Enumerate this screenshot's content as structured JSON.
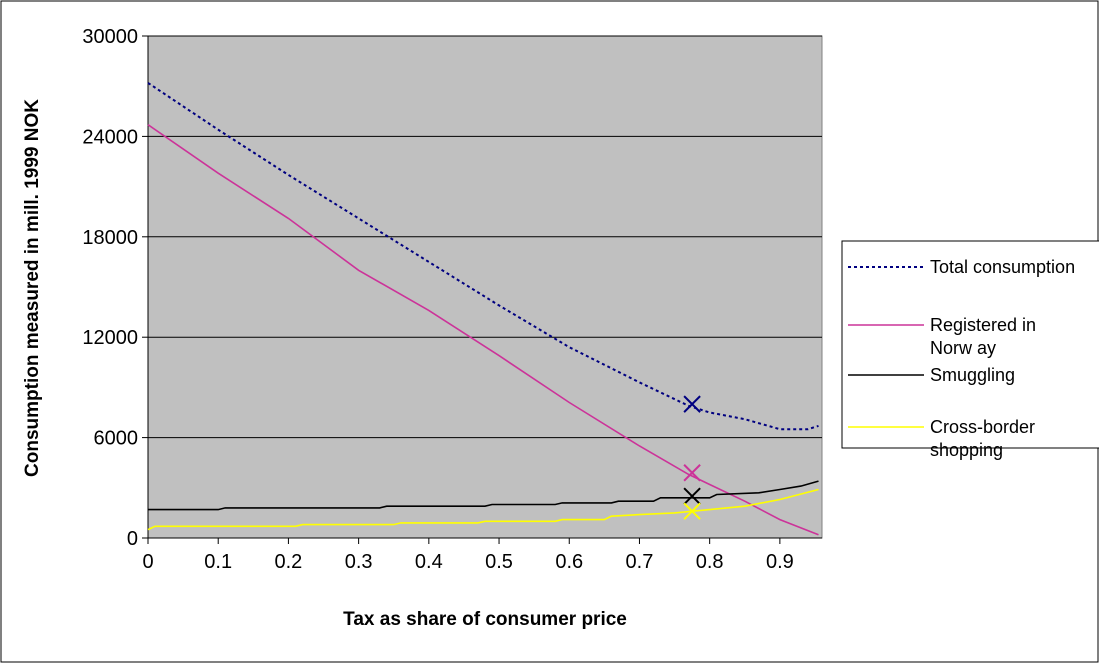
{
  "chart_data": {
    "type": "line",
    "xlabel": "Tax as share of consumer price",
    "ylabel": "Consumption measured in mill. 1999 NOK",
    "xlim": [
      0,
      0.96
    ],
    "ylim": [
      0,
      30000
    ],
    "x_ticks": [
      "0",
      "0.1",
      "0.2",
      "0.3",
      "0.4",
      "0.5",
      "0.6",
      "0.7",
      "0.8",
      "0.9"
    ],
    "y_ticks": [
      "0",
      "6000",
      "12000",
      "18000",
      "24000",
      "30000"
    ],
    "grid": "horizontal",
    "plot_background": "#c0c0c0",
    "legend_position": "right",
    "series": [
      {
        "name": "Total consumption",
        "color": "#000080",
        "style": "dotted",
        "points": [
          [
            0,
            27200
          ],
          [
            0.1,
            24400
          ],
          [
            0.2,
            21700
          ],
          [
            0.3,
            19100
          ],
          [
            0.4,
            16500
          ],
          [
            0.5,
            13900
          ],
          [
            0.6,
            11400
          ],
          [
            0.7,
            9300
          ],
          [
            0.77,
            7900
          ],
          [
            0.8,
            7500
          ],
          [
            0.85,
            7100
          ],
          [
            0.9,
            6500
          ],
          [
            0.94,
            6500
          ],
          [
            0.955,
            6700
          ]
        ],
        "marker": [
          0.775,
          8000
        ]
      },
      {
        "name": "Registered in Norway",
        "color": "#cc3399",
        "style": "solid",
        "points": [
          [
            0,
            24700
          ],
          [
            0.1,
            21800
          ],
          [
            0.2,
            19100
          ],
          [
            0.3,
            16000
          ],
          [
            0.4,
            13600
          ],
          [
            0.5,
            10900
          ],
          [
            0.6,
            8100
          ],
          [
            0.7,
            5500
          ],
          [
            0.77,
            3800
          ],
          [
            0.8,
            3200
          ],
          [
            0.85,
            2200
          ],
          [
            0.9,
            1100
          ],
          [
            0.955,
            200
          ]
        ],
        "marker": [
          0.775,
          3900
        ]
      },
      {
        "name": "Smuggling",
        "color": "#000000",
        "style": "solid",
        "points": [
          [
            0,
            1700
          ],
          [
            0.1,
            1700
          ],
          [
            0.11,
            1800
          ],
          [
            0.33,
            1800
          ],
          [
            0.34,
            1900
          ],
          [
            0.48,
            1900
          ],
          [
            0.49,
            2000
          ],
          [
            0.58,
            2000
          ],
          [
            0.59,
            2100
          ],
          [
            0.66,
            2100
          ],
          [
            0.67,
            2200
          ],
          [
            0.72,
            2200
          ],
          [
            0.73,
            2400
          ],
          [
            0.8,
            2400
          ],
          [
            0.81,
            2600
          ],
          [
            0.87,
            2700
          ],
          [
            0.9,
            2900
          ],
          [
            0.93,
            3100
          ],
          [
            0.955,
            3400
          ]
        ],
        "marker": [
          0.775,
          2500
        ]
      },
      {
        "name": "Cross-border shopping",
        "color": "#ffff00",
        "style": "solid",
        "points": [
          [
            0,
            500
          ],
          [
            0.01,
            700
          ],
          [
            0.21,
            700
          ],
          [
            0.22,
            800
          ],
          [
            0.35,
            800
          ],
          [
            0.36,
            900
          ],
          [
            0.47,
            900
          ],
          [
            0.48,
            1000
          ],
          [
            0.58,
            1000
          ],
          [
            0.59,
            1100
          ],
          [
            0.65,
            1100
          ],
          [
            0.66,
            1300
          ],
          [
            0.7,
            1400
          ],
          [
            0.75,
            1500
          ],
          [
            0.8,
            1700
          ],
          [
            0.85,
            1900
          ],
          [
            0.9,
            2300
          ],
          [
            0.955,
            2900
          ]
        ],
        "marker": [
          0.775,
          1600
        ]
      }
    ]
  },
  "legend": {
    "items": [
      {
        "label_lines": [
          "Total consumption"
        ]
      },
      {
        "label_lines": [
          "Registered in",
          "Norw ay"
        ]
      },
      {
        "label_lines": [
          "Smuggling"
        ]
      },
      {
        "label_lines": [
          "Cross-border",
          "shopping"
        ]
      }
    ]
  }
}
